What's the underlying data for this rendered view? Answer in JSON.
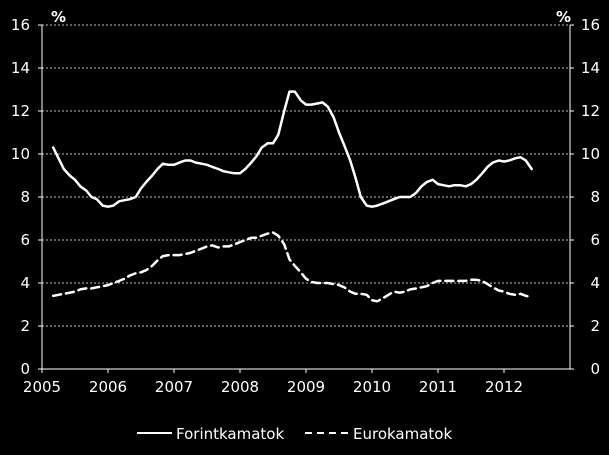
{
  "chart_data": {
    "type": "line",
    "title": "",
    "xlabel": "",
    "ylabel_left": "%",
    "ylabel_right": "%",
    "xlim": [
      2005,
      2013
    ],
    "ylim": [
      0,
      16
    ],
    "x_ticks": [
      "2005",
      "2006",
      "2007",
      "2008",
      "2009",
      "2010",
      "2011",
      "2012"
    ],
    "y_ticks": [
      "0",
      "2",
      "4",
      "6",
      "8",
      "10",
      "12",
      "14",
      "16"
    ],
    "grid": "horizontal dashed",
    "legend_position": "bottom",
    "background": "#000000",
    "line_color": "#ffffff",
    "series": [
      {
        "name": "Forintkamatok",
        "style": "solid",
        "points": [
          [
            2005.17,
            10.3
          ],
          [
            2005.25,
            9.8
          ],
          [
            2005.33,
            9.3
          ],
          [
            2005.42,
            9.0
          ],
          [
            2005.5,
            8.8
          ],
          [
            2005.58,
            8.5
          ],
          [
            2005.67,
            8.3
          ],
          [
            2005.75,
            8.0
          ],
          [
            2005.83,
            7.9
          ],
          [
            2005.92,
            7.6
          ],
          [
            2006.0,
            7.55
          ],
          [
            2006.08,
            7.6
          ],
          [
            2006.17,
            7.8
          ],
          [
            2006.25,
            7.85
          ],
          [
            2006.33,
            7.9
          ],
          [
            2006.42,
            8.0
          ],
          [
            2006.5,
            8.4
          ],
          [
            2006.58,
            8.7
          ],
          [
            2006.67,
            9.0
          ],
          [
            2006.75,
            9.3
          ],
          [
            2006.83,
            9.55
          ],
          [
            2006.92,
            9.5
          ],
          [
            2007.0,
            9.5
          ],
          [
            2007.08,
            9.6
          ],
          [
            2007.17,
            9.7
          ],
          [
            2007.25,
            9.7
          ],
          [
            2007.33,
            9.6
          ],
          [
            2007.42,
            9.55
          ],
          [
            2007.5,
            9.5
          ],
          [
            2007.58,
            9.4
          ],
          [
            2007.67,
            9.3
          ],
          [
            2007.75,
            9.2
          ],
          [
            2007.83,
            9.15
          ],
          [
            2007.92,
            9.1
          ],
          [
            2008.0,
            9.1
          ],
          [
            2008.08,
            9.3
          ],
          [
            2008.17,
            9.6
          ],
          [
            2008.25,
            9.9
          ],
          [
            2008.33,
            10.3
          ],
          [
            2008.42,
            10.5
          ],
          [
            2008.5,
            10.5
          ],
          [
            2008.58,
            10.9
          ],
          [
            2008.67,
            12.0
          ],
          [
            2008.75,
            12.9
          ],
          [
            2008.83,
            12.9
          ],
          [
            2008.92,
            12.5
          ],
          [
            2009.0,
            12.3
          ],
          [
            2009.08,
            12.3
          ],
          [
            2009.17,
            12.35
          ],
          [
            2009.25,
            12.4
          ],
          [
            2009.33,
            12.2
          ],
          [
            2009.42,
            11.7
          ],
          [
            2009.5,
            11.0
          ],
          [
            2009.58,
            10.4
          ],
          [
            2009.67,
            9.7
          ],
          [
            2009.75,
            8.9
          ],
          [
            2009.83,
            8.0
          ],
          [
            2009.92,
            7.6
          ],
          [
            2010.0,
            7.55
          ],
          [
            2010.08,
            7.6
          ],
          [
            2010.17,
            7.7
          ],
          [
            2010.25,
            7.8
          ],
          [
            2010.33,
            7.9
          ],
          [
            2010.42,
            8.0
          ],
          [
            2010.5,
            8.0
          ],
          [
            2010.58,
            8.0
          ],
          [
            2010.67,
            8.2
          ],
          [
            2010.75,
            8.5
          ],
          [
            2010.83,
            8.7
          ],
          [
            2010.92,
            8.8
          ],
          [
            2011.0,
            8.6
          ],
          [
            2011.08,
            8.55
          ],
          [
            2011.17,
            8.5
          ],
          [
            2011.25,
            8.55
          ],
          [
            2011.33,
            8.55
          ],
          [
            2011.42,
            8.5
          ],
          [
            2011.5,
            8.6
          ],
          [
            2011.58,
            8.8
          ],
          [
            2011.67,
            9.1
          ],
          [
            2011.75,
            9.4
          ],
          [
            2011.83,
            9.6
          ],
          [
            2011.92,
            9.7
          ],
          [
            2012.0,
            9.65
          ],
          [
            2012.08,
            9.7
          ],
          [
            2012.17,
            9.8
          ],
          [
            2012.25,
            9.85
          ],
          [
            2012.33,
            9.7
          ],
          [
            2012.42,
            9.3
          ]
        ]
      },
      {
        "name": "Eurokamatok",
        "style": "dashed",
        "points": [
          [
            2005.17,
            3.4
          ],
          [
            2005.25,
            3.45
          ],
          [
            2005.33,
            3.5
          ],
          [
            2005.42,
            3.55
          ],
          [
            2005.5,
            3.6
          ],
          [
            2005.58,
            3.7
          ],
          [
            2005.67,
            3.75
          ],
          [
            2005.75,
            3.75
          ],
          [
            2005.83,
            3.8
          ],
          [
            2005.92,
            3.85
          ],
          [
            2006.0,
            3.9
          ],
          [
            2006.08,
            4.0
          ],
          [
            2006.17,
            4.1
          ],
          [
            2006.25,
            4.2
          ],
          [
            2006.33,
            4.35
          ],
          [
            2006.42,
            4.45
          ],
          [
            2006.5,
            4.5
          ],
          [
            2006.58,
            4.6
          ],
          [
            2006.67,
            4.8
          ],
          [
            2006.75,
            5.05
          ],
          [
            2006.83,
            5.25
          ],
          [
            2006.92,
            5.3
          ],
          [
            2007.0,
            5.3
          ],
          [
            2007.08,
            5.3
          ],
          [
            2007.17,
            5.35
          ],
          [
            2007.25,
            5.4
          ],
          [
            2007.33,
            5.5
          ],
          [
            2007.42,
            5.6
          ],
          [
            2007.5,
            5.7
          ],
          [
            2007.58,
            5.75
          ],
          [
            2007.67,
            5.65
          ],
          [
            2007.75,
            5.7
          ],
          [
            2007.83,
            5.7
          ],
          [
            2007.92,
            5.8
          ],
          [
            2008.0,
            5.9
          ],
          [
            2008.08,
            6.0
          ],
          [
            2008.17,
            6.1
          ],
          [
            2008.25,
            6.1
          ],
          [
            2008.33,
            6.2
          ],
          [
            2008.42,
            6.3
          ],
          [
            2008.5,
            6.35
          ],
          [
            2008.58,
            6.2
          ],
          [
            2008.67,
            5.8
          ],
          [
            2008.75,
            5.1
          ],
          [
            2008.83,
            4.8
          ],
          [
            2008.92,
            4.5
          ],
          [
            2009.0,
            4.2
          ],
          [
            2009.08,
            4.05
          ],
          [
            2009.17,
            4.0
          ],
          [
            2009.25,
            4.0
          ],
          [
            2009.33,
            4.0
          ],
          [
            2009.42,
            3.95
          ],
          [
            2009.5,
            3.9
          ],
          [
            2009.58,
            3.8
          ],
          [
            2009.67,
            3.6
          ],
          [
            2009.75,
            3.5
          ],
          [
            2009.83,
            3.5
          ],
          [
            2009.92,
            3.45
          ],
          [
            2010.0,
            3.2
          ],
          [
            2010.08,
            3.15
          ],
          [
            2010.17,
            3.3
          ],
          [
            2010.25,
            3.45
          ],
          [
            2010.33,
            3.6
          ],
          [
            2010.42,
            3.55
          ],
          [
            2010.5,
            3.6
          ],
          [
            2010.58,
            3.7
          ],
          [
            2010.67,
            3.75
          ],
          [
            2010.75,
            3.8
          ],
          [
            2010.83,
            3.85
          ],
          [
            2010.92,
            4.0
          ],
          [
            2011.0,
            4.1
          ],
          [
            2011.08,
            4.1
          ],
          [
            2011.17,
            4.1
          ],
          [
            2011.25,
            4.1
          ],
          [
            2011.33,
            4.1
          ],
          [
            2011.42,
            4.1
          ],
          [
            2011.5,
            4.15
          ],
          [
            2011.58,
            4.15
          ],
          [
            2011.67,
            4.1
          ],
          [
            2011.75,
            3.95
          ],
          [
            2011.83,
            3.8
          ],
          [
            2011.92,
            3.65
          ],
          [
            2012.0,
            3.6
          ],
          [
            2012.08,
            3.5
          ],
          [
            2012.17,
            3.45
          ],
          [
            2012.25,
            3.5
          ],
          [
            2012.33,
            3.4
          ],
          [
            2012.42,
            3.35
          ]
        ]
      }
    ]
  }
}
